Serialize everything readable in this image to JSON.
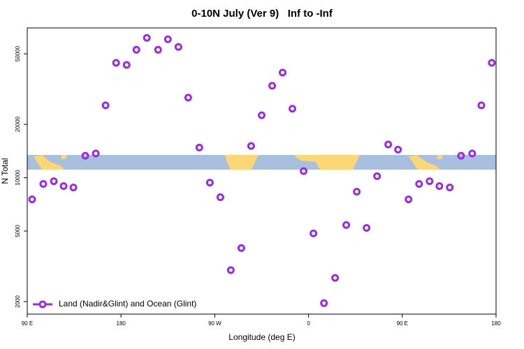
{
  "chart_data": {
    "type": "scatter",
    "title": "0-10N July (Ver 9)   Inf to -Inf",
    "x_label": "Longitude (deg E)",
    "y_label": "N Total",
    "log_y": true,
    "xlim": [
      90,
      540
    ],
    "xticks": [
      {
        "value": 90,
        "label": "90 E"
      },
      180,
      {
        "value": 270,
        "label": "90 W"
      },
      {
        "value": 360,
        "label": "0"
      },
      {
        "value": 450,
        "label": "90 E"
      },
      {
        "value": 540,
        "label": "180"
      }
    ],
    "ylim": [
      1700,
      70000
    ],
    "yticks": [
      2000,
      5000,
      10000,
      20000,
      50000
    ],
    "legend": "bottom-left",
    "series": [
      {
        "name": "Land (Nadir&Glint) and Ocean (Glint)",
        "color": "#9a2be2",
        "x": [
          94.7,
          105.4,
          115.5,
          124.9,
          134.3,
          145.7,
          155.8,
          165.2,
          175.3,
          185.4,
          194.8,
          204.8,
          215.6,
          225.0,
          235.1,
          244.5,
          255.2,
          265.3,
          275.4,
          285.4,
          295.5,
          304.9,
          315.0,
          325.1,
          335.1,
          344.5,
          355.3,
          364.7,
          374.8,
          385.5,
          396.2,
          406.3,
          415.7,
          425.8,
          436.5,
          445.9,
          456.0,
          466.1,
          476.2,
          485.6,
          495.6,
          506.4,
          517.1,
          525.9,
          535.9
        ],
        "values": [
          7550,
          9220,
          9550,
          8970,
          8810,
          13300,
          13700,
          25600,
          44500,
          43300,
          52700,
          61500,
          52700,
          60400,
          54700,
          28300,
          14800,
          9380,
          7760,
          3010,
          4010,
          15100,
          22500,
          33000,
          39200,
          24500,
          10900,
          4850,
          1960,
          2720,
          5410,
          8340,
          5210,
          10200,
          15400,
          14400,
          7550,
          9220,
          9550,
          8970,
          8810,
          13300,
          13700,
          25600,
          44500
        ]
      }
    ]
  }
}
